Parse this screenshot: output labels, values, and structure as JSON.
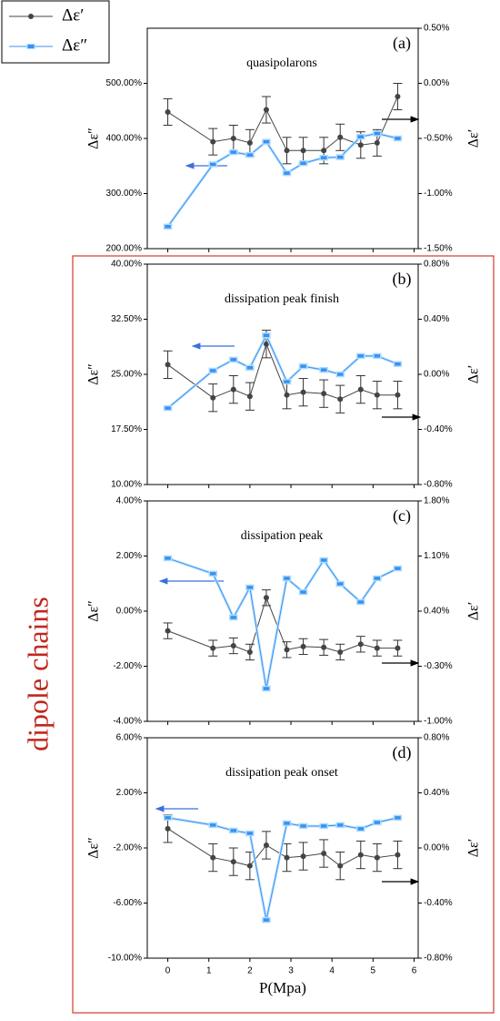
{
  "group_label": "dipole chains",
  "chart_data": [
    {
      "type": "line",
      "title": "quasipolarons",
      "annotation": "(a)",
      "ylabel": "Δε″",
      "y2label": "Δε′",
      "x": [
        0,
        1.1,
        1.6,
        2.0,
        2.4,
        2.9,
        3.3,
        3.8,
        4.2,
        4.7,
        5.1,
        5.6
      ],
      "xlim": [
        -0.5,
        6.1
      ],
      "xticks": [
        0,
        1,
        2,
        3,
        4,
        5,
        6
      ],
      "ylim": [
        200,
        600
      ],
      "yticks": [
        {
          "value": 200,
          "label": "200.00%"
        },
        {
          "value": 300,
          "label": "300.00%"
        },
        {
          "value": 400,
          "label": "400.00%"
        },
        {
          "value": 500,
          "label": "500.00%"
        }
      ],
      "y2lim": [
        -1.5,
        0.5
      ],
      "y2ticks": [
        {
          "value": -1.5,
          "label": "-1.50%"
        },
        {
          "value": -1,
          "label": "-1.00%"
        },
        {
          "value": -0.5,
          "label": "-0.50%"
        },
        {
          "value": 0,
          "label": "0.00%"
        },
        {
          "value": 0.5,
          "label": "0.50%"
        }
      ],
      "series": [
        {
          "name": "Δε′",
          "color": "#444444",
          "axis": "y2",
          "values": [
            -0.26,
            -0.53,
            -0.5,
            -0.54,
            -0.24,
            -0.61,
            -0.61,
            -0.61,
            -0.49,
            -0.56,
            -0.54,
            -0.12
          ],
          "errors": [
            0.12,
            0.12,
            0.12,
            0.12,
            0.12,
            0.12,
            0.12,
            0.12,
            0.12,
            0.12,
            0.12,
            0.12
          ]
        },
        {
          "name": "Δε″",
          "color": "#3b8ff0",
          "values": [
            240,
            353,
            375,
            370,
            394,
            337,
            355,
            365,
            366,
            403,
            409,
            400
          ]
        }
      ]
    },
    {
      "type": "line",
      "title": "dissipation peak finish",
      "annotation": "(b)",
      "ylabel": "Δε″",
      "y2label": "Δε′",
      "x": [
        0,
        1.1,
        1.6,
        2.0,
        2.4,
        2.9,
        3.3,
        3.8,
        4.2,
        4.7,
        5.1,
        5.6
      ],
      "xlim": [
        -0.5,
        6.1
      ],
      "xticks": [
        0,
        1,
        2,
        3,
        4,
        5,
        6
      ],
      "ylim": [
        10,
        40
      ],
      "yticks": [
        {
          "value": 10,
          "label": "10.00%"
        },
        {
          "value": 17.5,
          "label": "17.50%"
        },
        {
          "value": 25,
          "label": "25.00%"
        },
        {
          "value": 32.5,
          "label": "32.50%"
        },
        {
          "value": 40,
          "label": "40.00%"
        }
      ],
      "y2lim": [
        -0.8,
        0.8
      ],
      "y2ticks": [
        {
          "value": -0.8,
          "label": "-0.80%"
        },
        {
          "value": -0.4,
          "label": "-0.40%"
        },
        {
          "value": 0,
          "label": "0.00%"
        },
        {
          "value": 0.4,
          "label": "0.40%"
        },
        {
          "value": 0.8,
          "label": "0.80%"
        }
      ],
      "series": [
        {
          "name": "Δε′",
          "color": "#444444",
          "axis": "y2",
          "values": [
            0.07,
            -0.17,
            -0.11,
            -0.16,
            0.22,
            -0.15,
            -0.13,
            -0.14,
            -0.18,
            -0.11,
            -0.15,
            -0.15
          ],
          "errors": [
            0.1,
            0.1,
            0.1,
            0.1,
            0.1,
            0.1,
            0.1,
            0.1,
            0.1,
            0.1,
            0.1,
            0.1
          ]
        },
        {
          "name": "Δε″",
          "color": "#3b8ff0",
          "values": [
            20.4,
            25.5,
            27.0,
            25.9,
            30.3,
            24.0,
            26.1,
            25.6,
            25.0,
            27.5,
            27.5,
            26.4
          ]
        }
      ]
    },
    {
      "type": "line",
      "title": "dissipation peak",
      "annotation": "(c)",
      "ylabel": "Δε″",
      "y2label": "Δε′",
      "x": [
        0,
        1.1,
        1.6,
        2.0,
        2.4,
        2.9,
        3.3,
        3.8,
        4.2,
        4.7,
        5.1,
        5.6
      ],
      "xlim": [
        -0.5,
        6.1
      ],
      "xticks": [
        0,
        1,
        2,
        3,
        4,
        5,
        6
      ],
      "ylim": [
        -4,
        4
      ],
      "yticks": [
        {
          "value": -4,
          "label": "-4.00%"
        },
        {
          "value": -2,
          "label": "-2.00%"
        },
        {
          "value": 0,
          "label": "0.00%"
        },
        {
          "value": 2,
          "label": "2.00%"
        },
        {
          "value": 4,
          "label": "4.00%"
        }
      ],
      "y2lim": [
        -1,
        1.8
      ],
      "y2ticks": [
        {
          "value": -1,
          "label": "-1.00%"
        },
        {
          "value": -0.3,
          "label": "-0.30%"
        },
        {
          "value": 0.4,
          "label": "0.40%"
        },
        {
          "value": 1.1,
          "label": "1.10%"
        },
        {
          "value": 1.8,
          "label": "1.80%"
        }
      ],
      "series": [
        {
          "name": "Δε′",
          "color": "#444444",
          "axis": "y2",
          "values": [
            0.15,
            -0.07,
            -0.04,
            -0.12,
            0.57,
            -0.09,
            -0.05,
            -0.06,
            -0.12,
            -0.02,
            -0.07,
            -0.07
          ],
          "errors": [
            0.1,
            0.1,
            0.1,
            0.1,
            0.1,
            0.1,
            0.1,
            0.1,
            0.1,
            0.1,
            0.1,
            0.1
          ]
        },
        {
          "name": "Δε″",
          "color": "#3b8ff0",
          "values": [
            1.92,
            1.36,
            -0.23,
            0.86,
            -2.81,
            1.19,
            0.69,
            1.85,
            0.99,
            0.33,
            1.19,
            1.55
          ]
        }
      ]
    },
    {
      "type": "line",
      "title": "dissipation peak onset",
      "annotation": "(d)",
      "ylabel": "Δε″",
      "y2label": "Δε′",
      "xlabel": "P(Mpa)",
      "x": [
        0,
        1.1,
        1.6,
        2.0,
        2.4,
        2.9,
        3.3,
        3.8,
        4.2,
        4.7,
        5.1,
        5.6
      ],
      "xlim": [
        -0.5,
        6.1
      ],
      "xticks": [
        0,
        1,
        2,
        3,
        4,
        5,
        6
      ],
      "ylim": [
        -10,
        6
      ],
      "yticks": [
        {
          "value": -10,
          "label": "-10.00%"
        },
        {
          "value": -6,
          "label": "-6.00%"
        },
        {
          "value": -2,
          "label": "-2.00%"
        },
        {
          "value": 2,
          "label": "2.00%"
        },
        {
          "value": 6,
          "label": "6.00%"
        }
      ],
      "y2lim": [
        -0.8,
        0.8
      ],
      "y2ticks": [
        {
          "value": -0.8,
          "label": "-0.80%"
        },
        {
          "value": -0.4,
          "label": "-0.40%"
        },
        {
          "value": 0,
          "label": "0.00%"
        },
        {
          "value": 0.4,
          "label": "0.40%"
        },
        {
          "value": 0.8,
          "label": "0.80%"
        }
      ],
      "series": [
        {
          "name": "Δε′",
          "color": "#444444",
          "axis": "y2",
          "values": [
            0.14,
            -0.07,
            -0.1,
            -0.13,
            0.02,
            -0.07,
            -0.06,
            -0.04,
            -0.13,
            -0.05,
            -0.07,
            -0.05
          ],
          "errors": [
            0.1,
            0.1,
            0.1,
            0.1,
            0.1,
            0.1,
            0.1,
            0.1,
            0.1,
            0.1,
            0.1,
            0.1
          ]
        },
        {
          "name": "Δε″",
          "color": "#3b8ff0",
          "values": [
            0.19,
            -0.34,
            -0.74,
            -0.94,
            -7.23,
            -0.21,
            -0.41,
            -0.41,
            -0.34,
            -0.61,
            -0.15,
            0.19
          ]
        }
      ]
    }
  ]
}
